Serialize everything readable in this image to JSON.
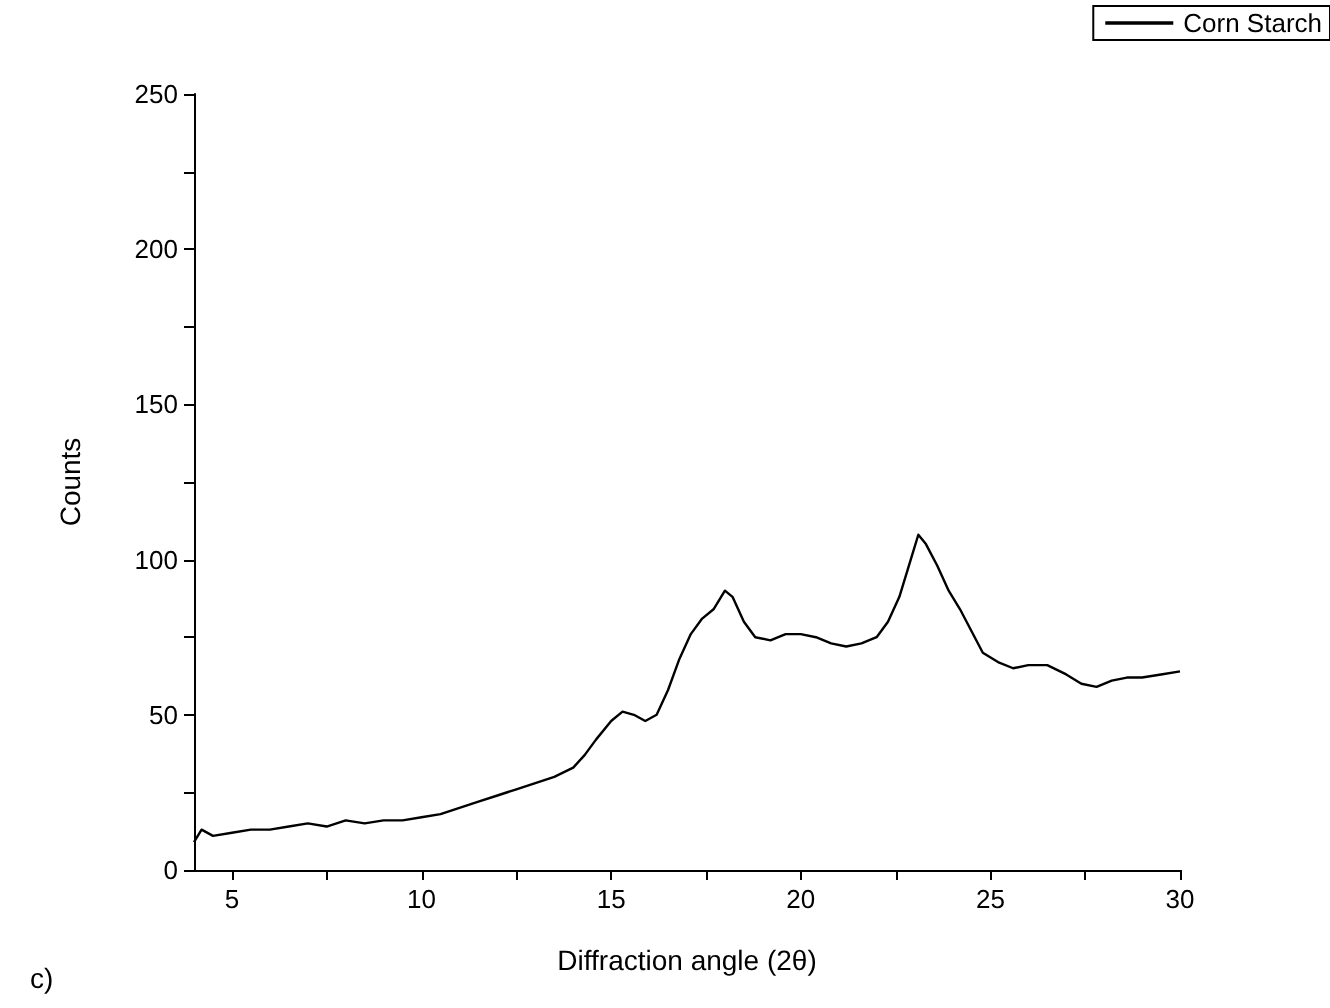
{
  "chart_data": {
    "type": "line",
    "xlabel": "Diffraction angle (2θ)",
    "ylabel": "Counts",
    "annotations": [
      "c)"
    ],
    "legend": "top right",
    "grid": false,
    "marker": "none",
    "line_style": "solid",
    "xlim": [
      4,
      30
    ],
    "ylim": [
      0,
      250
    ],
    "xticks": [
      5,
      {
        "value": 7.5,
        "label": null
      },
      10,
      {
        "value": 12.5,
        "label": null
      },
      15,
      {
        "value": 17.5,
        "label": null
      },
      20,
      {
        "value": 22.5,
        "label": null
      },
      25,
      {
        "value": 27.5,
        "label": null
      },
      30
    ],
    "yticks": [
      0,
      {
        "value": 25,
        "label": null
      },
      50,
      {
        "value": 75,
        "label": null
      },
      100,
      {
        "value": 125,
        "label": null
      },
      150,
      {
        "value": 175,
        "label": null
      },
      200,
      {
        "value": 225,
        "label": null
      },
      250
    ],
    "series": [
      {
        "name": "Corn Starch",
        "color": "#000000",
        "x": [
          4.0,
          4.2,
          4.5,
          5,
          5.5,
          6,
          6.5,
          7,
          7.5,
          8,
          8.5,
          9,
          9.5,
          10,
          10.5,
          11,
          11.5,
          12,
          12.5,
          13,
          13.5,
          14,
          14.3,
          14.6,
          15,
          15.3,
          15.6,
          15.9,
          16.2,
          16.5,
          16.8,
          17.1,
          17.4,
          17.7,
          18,
          18.2,
          18.5,
          18.8,
          19.2,
          19.6,
          20,
          20.4,
          20.8,
          21.2,
          21.6,
          22,
          22.3,
          22.6,
          22.9,
          23.1,
          23.3,
          23.6,
          23.9,
          24.2,
          24.5,
          24.8,
          25.2,
          25.6,
          26,
          26.5,
          27,
          27.4,
          27.8,
          28.2,
          28.6,
          29,
          29.5,
          30
        ],
        "values": [
          9,
          13,
          11,
          12,
          13,
          13,
          14,
          15,
          14,
          16,
          15,
          16,
          16,
          17,
          18,
          20,
          22,
          24,
          26,
          28,
          30,
          33,
          37,
          42,
          48,
          51,
          50,
          48,
          50,
          58,
          68,
          76,
          81,
          84,
          90,
          88,
          80,
          75,
          74,
          76,
          76,
          75,
          73,
          72,
          73,
          75,
          80,
          88,
          100,
          108,
          105,
          98,
          90,
          84,
          77,
          70,
          67,
          65,
          66,
          66,
          63,
          60,
          59,
          61,
          62,
          62,
          63,
          64
        ]
      }
    ]
  }
}
